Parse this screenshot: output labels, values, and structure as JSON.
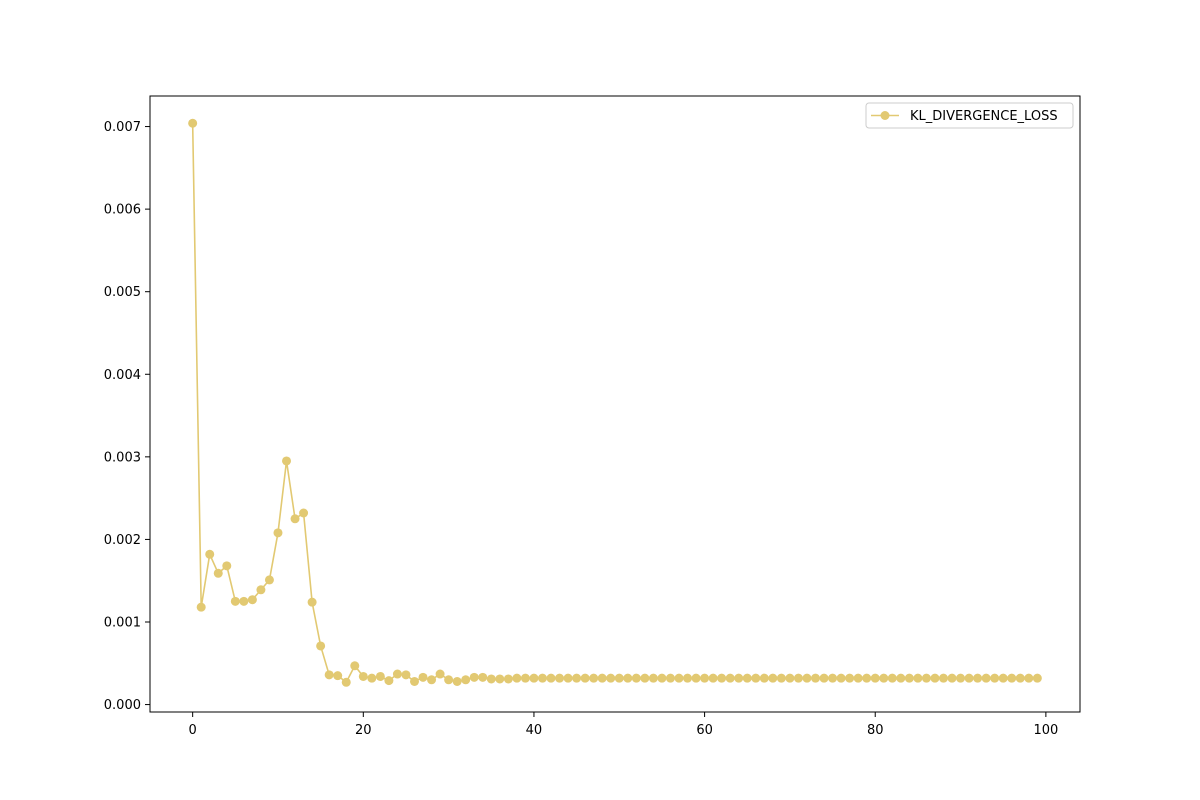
{
  "chart_data": {
    "type": "line",
    "title": "",
    "xlabel": "",
    "ylabel": "",
    "xlim": [
      -5,
      104
    ],
    "ylim": [
      -9e-05,
      0.00737
    ],
    "x_ticks": [
      0,
      20,
      40,
      60,
      80,
      100
    ],
    "x_tick_labels": [
      "0",
      "20",
      "40",
      "60",
      "80",
      "100"
    ],
    "y_ticks": [
      0.0,
      0.001,
      0.002,
      0.003,
      0.004,
      0.005,
      0.006,
      0.007
    ],
    "y_tick_labels": [
      "0.000",
      "0.001",
      "0.002",
      "0.003",
      "0.004",
      "0.005",
      "0.006",
      "0.007"
    ],
    "grid": false,
    "legend": {
      "position": "top-right",
      "entries": [
        "KL_DIVERGENCE_LOSS"
      ]
    },
    "series": [
      {
        "name": "KL_DIVERGENCE_LOSS",
        "color": "#e2c972",
        "marker": "circle",
        "x": [
          0,
          1,
          2,
          3,
          4,
          5,
          6,
          7,
          8,
          9,
          10,
          11,
          12,
          13,
          14,
          15,
          16,
          17,
          18,
          19,
          20,
          21,
          22,
          23,
          24,
          25,
          26,
          27,
          28,
          29,
          30,
          31,
          32,
          33,
          34,
          35,
          36,
          37,
          38,
          39,
          40,
          41,
          42,
          43,
          44,
          45,
          46,
          47,
          48,
          49,
          50,
          51,
          52,
          53,
          54,
          55,
          56,
          57,
          58,
          59,
          60,
          61,
          62,
          63,
          64,
          65,
          66,
          67,
          68,
          69,
          70,
          71,
          72,
          73,
          74,
          75,
          76,
          77,
          78,
          79,
          80,
          81,
          82,
          83,
          84,
          85,
          86,
          87,
          88,
          89,
          90,
          91,
          92,
          93,
          94,
          95,
          96,
          97,
          98,
          99
        ],
        "values": [
          0.00704,
          0.00118,
          0.00182,
          0.00159,
          0.00168,
          0.00125,
          0.00125,
          0.00127,
          0.00139,
          0.00151,
          0.00208,
          0.00295,
          0.00225,
          0.00232,
          0.00124,
          0.00071,
          0.00036,
          0.00035,
          0.00027,
          0.00047,
          0.00034,
          0.00032,
          0.00034,
          0.00029,
          0.00037,
          0.00036,
          0.00028,
          0.00033,
          0.0003,
          0.00037,
          0.0003,
          0.00028,
          0.0003,
          0.00033,
          0.00033,
          0.00031,
          0.00031,
          0.00031,
          0.00032,
          0.00032,
          0.00032,
          0.00032,
          0.00032,
          0.00032,
          0.00032,
          0.00032,
          0.00032,
          0.00032,
          0.00032,
          0.00032,
          0.00032,
          0.00032,
          0.00032,
          0.00032,
          0.00032,
          0.00032,
          0.00032,
          0.00032,
          0.00032,
          0.00032,
          0.00032,
          0.00032,
          0.00032,
          0.00032,
          0.00032,
          0.00032,
          0.00032,
          0.00032,
          0.00032,
          0.00032,
          0.00032,
          0.00032,
          0.00032,
          0.00032,
          0.00032,
          0.00032,
          0.00032,
          0.00032,
          0.00032,
          0.00032,
          0.00032,
          0.00032,
          0.00032,
          0.00032,
          0.00032,
          0.00032,
          0.00032,
          0.00032,
          0.00032,
          0.00032,
          0.00032,
          0.00032,
          0.00032,
          0.00032,
          0.00032,
          0.00032,
          0.00032,
          0.00032,
          0.00032,
          0.00032
        ]
      }
    ]
  }
}
